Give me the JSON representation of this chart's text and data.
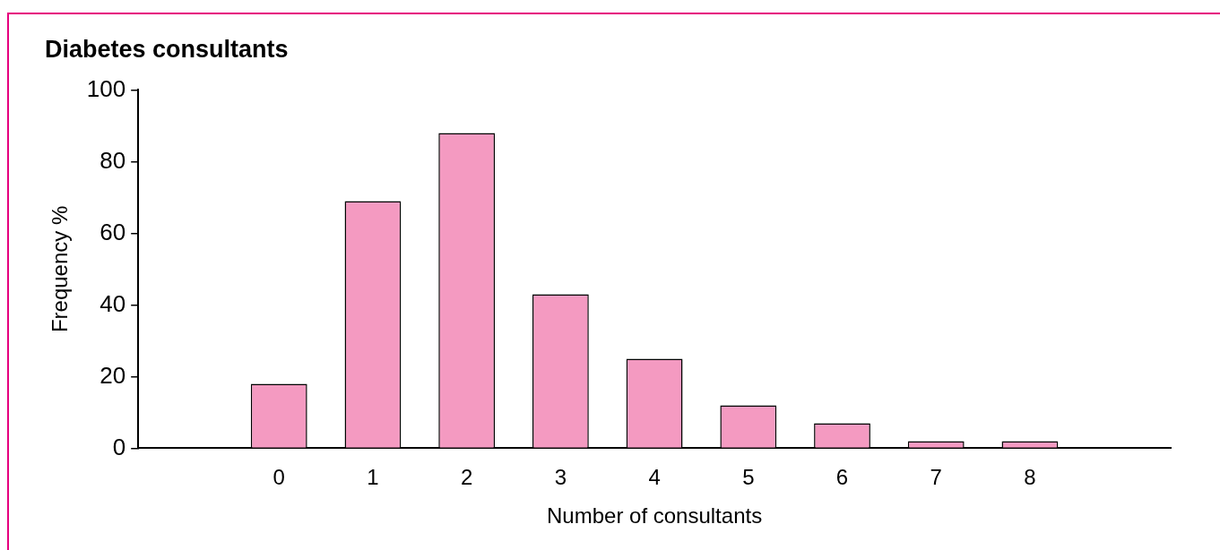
{
  "chart_data": {
    "type": "bar",
    "title": "Diabetes consultants",
    "xlabel": "Number of consultants",
    "ylabel": "Frequency %",
    "categories": [
      null,
      "0",
      "1",
      "2",
      "3",
      "4",
      "5",
      "6",
      "7",
      "8",
      null
    ],
    "values": [
      null,
      18,
      69,
      88,
      43,
      25,
      12,
      7,
      2,
      2,
      null
    ],
    "color": "#f49ac1",
    "ylim": [
      0,
      100
    ],
    "yticks": [
      0,
      20,
      40,
      60,
      80,
      100
    ],
    "grid": false
  }
}
